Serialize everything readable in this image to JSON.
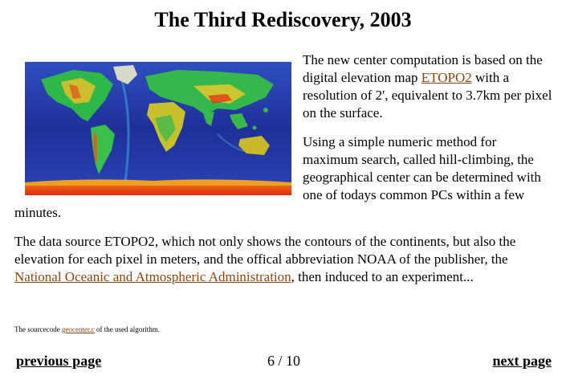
{
  "title": "The Third Rediscovery, 2003",
  "image": {
    "icon": "world-elevation-map"
  },
  "para1": {
    "before": "The new center computation is based on the digital elevation map ",
    "link": "ETOPO2",
    "after": " with a resolution of 2', equivalent to 3.7km per pixel on the surface."
  },
  "para2": {
    "text": "Using a simple numeric method for maximum search, called hill-climbing, the geographical center can be determined with one of todays common PCs within a few minutes."
  },
  "para3": {
    "before": "The data source ETOPO2, which not only shows the contours of the continents, but also the elevation for each pixel in meters, and the offical abbreviation NOAA of the publisher, the ",
    "link": "National Oceanic and Atmospheric Administration",
    "after": ", then induced to an experiment..."
  },
  "source_note": {
    "before": "The sourcecode ",
    "link": "geocenter.c",
    "after": " of the used algorithm."
  },
  "nav": {
    "prev": "previous page",
    "counter": "6 / 10",
    "next": "next page"
  },
  "colors": {
    "link": "#8b4513",
    "ocean_deep": "#1a2a8c",
    "land_high": "#d83a1a"
  }
}
